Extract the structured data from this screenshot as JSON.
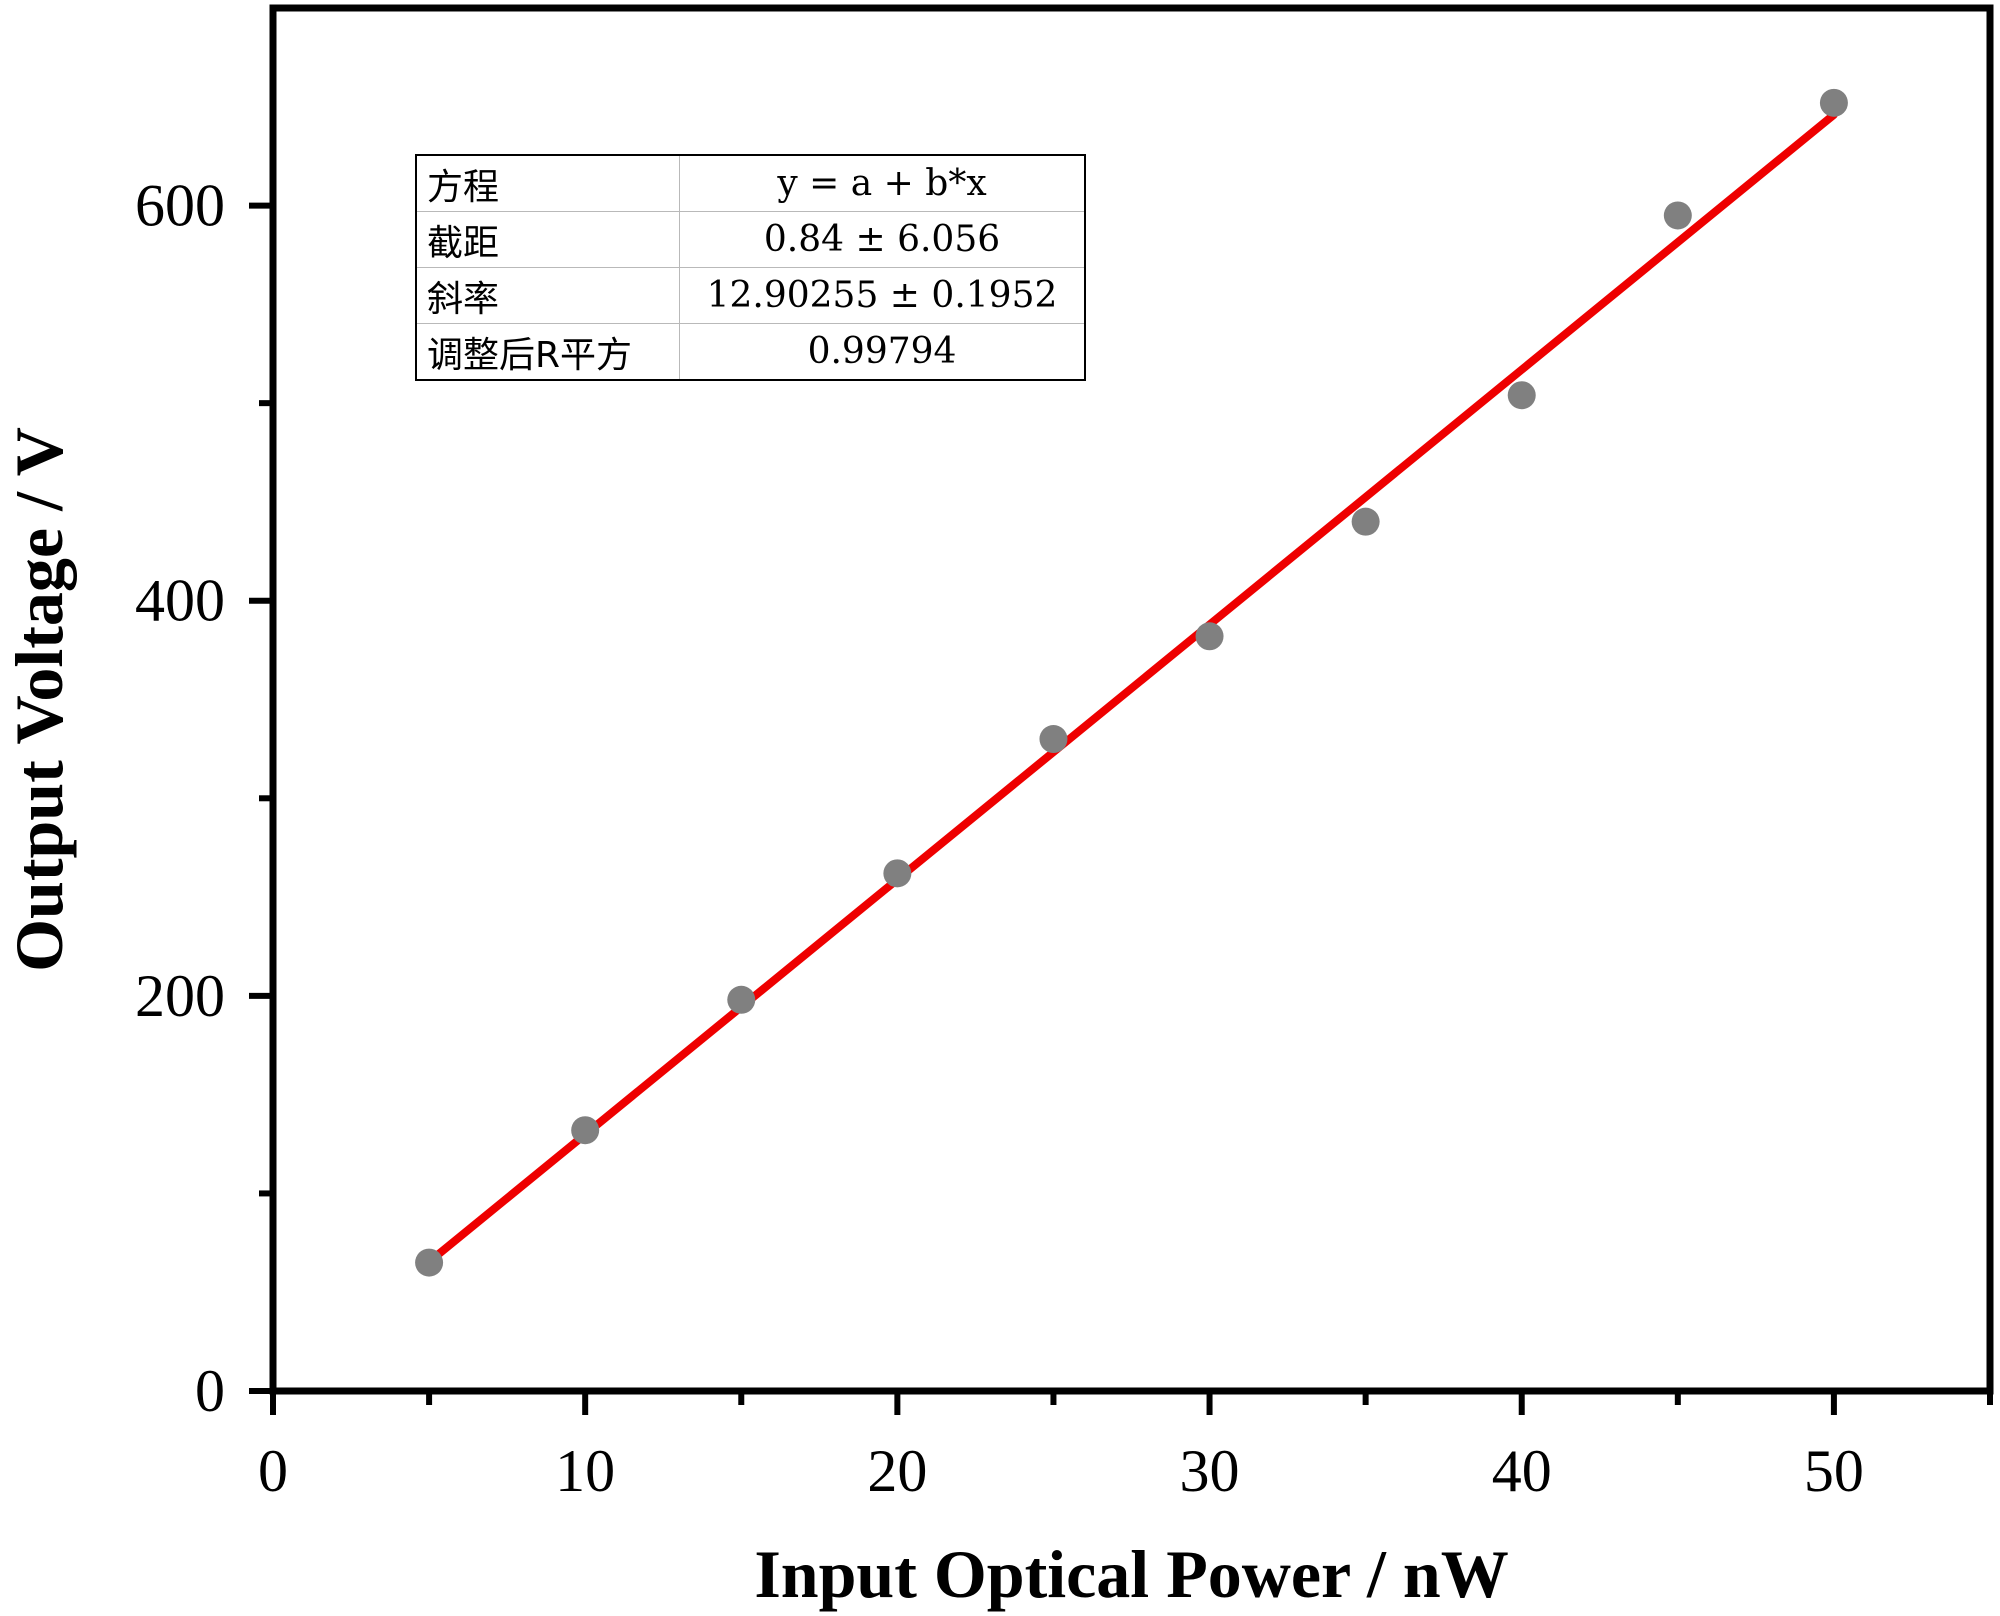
{
  "chart_data": {
    "type": "scatter",
    "xlabel": "Input Optical Power / nW",
    "ylabel": "Output Voltage / V",
    "xlim": [
      0,
      55
    ],
    "ylim": [
      0,
      700
    ],
    "x_ticks": [
      0,
      10,
      20,
      30,
      40,
      50
    ],
    "x_minor_ticks": [
      5,
      15,
      25,
      35,
      45,
      55
    ],
    "y_ticks": [
      0,
      200,
      400,
      600
    ],
    "y_minor_ticks": [
      100,
      300,
      500
    ],
    "grid": false,
    "series": [
      {
        "marker_color": "#808080",
        "x": [
          5,
          10,
          15,
          20,
          25,
          30,
          35,
          40,
          45,
          50
        ],
        "y": [
          65,
          132,
          198,
          262,
          330,
          382,
          440,
          504,
          595,
          652
        ]
      }
    ],
    "fit": {
      "color": "#ee0000",
      "equation": "y = a + b*x",
      "intercept": 0.84,
      "slope": 12.90255,
      "x_range": [
        5,
        50
      ]
    },
    "fit_table": {
      "rows": [
        {
          "label": "方程",
          "value": "y = a + b*x"
        },
        {
          "label": "截距",
          "value": "0.84 ± 6.056"
        },
        {
          "label": "斜率",
          "value": "12.90255 ± 0.1952"
        },
        {
          "label": "调整后R平方",
          "value": "0.99794"
        }
      ]
    }
  }
}
